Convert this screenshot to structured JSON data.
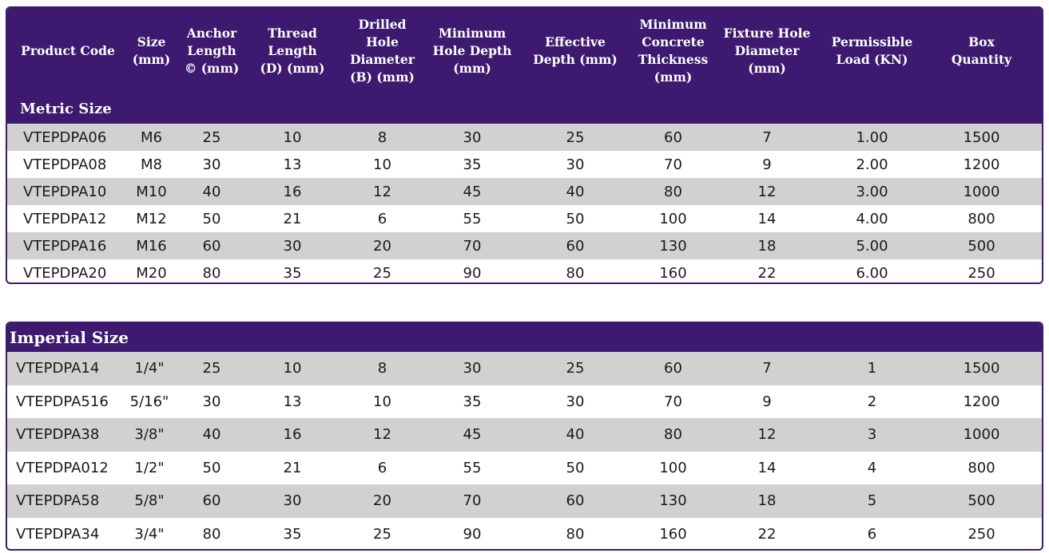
{
  "headers": [
    "Product Code",
    "Size\n(mm)",
    "Anchor\nLength\n© (mm)",
    "Thread\nLength\n(D) (mm)",
    "Drilled\nHole\nDiameter\n(B) (mm)",
    "Minimum\nHole Depth\n(mm)",
    "Effective\nDepth (mm)",
    "Minimum\nConcrete\nThickness\n(mm)",
    "Fixture Hole\nDiameter\n(mm)",
    "Permissible\nLoad (KN)",
    "Box\nQuantity"
  ],
  "metric": {
    "title": "Metric Size",
    "rows": [
      [
        "VTEPDPA06",
        "M6",
        "25",
        "10",
        "8",
        "30",
        "25",
        "60",
        "7",
        "1.00",
        "1500"
      ],
      [
        "VTEPDPA08",
        "M8",
        "30",
        "13",
        "10",
        "35",
        "30",
        "70",
        "9",
        "2.00",
        "1200"
      ],
      [
        "VTEPDPA10",
        "M10",
        "40",
        "16",
        "12",
        "45",
        "40",
        "80",
        "12",
        "3.00",
        "1000"
      ],
      [
        "VTEPDPA12",
        "M12",
        "50",
        "21",
        "6",
        "55",
        "50",
        "100",
        "14",
        "4.00",
        "800"
      ],
      [
        "VTEPDPA16",
        "M16",
        "60",
        "30",
        "20",
        "70",
        "60",
        "130",
        "18",
        "5.00",
        "500"
      ],
      [
        "VTEPDPA20",
        "M20",
        "80",
        "35",
        "25",
        "90",
        "80",
        "160",
        "22",
        "6.00",
        "250"
      ]
    ]
  },
  "imperial": {
    "title": "Imperial Size",
    "rows": [
      [
        "VTEPDPA14",
        "1/4\"",
        "25",
        "10",
        "8",
        "30",
        "25",
        "60",
        "7",
        "1",
        "1500"
      ],
      [
        "VTEPDPA516",
        "5/16\"",
        "30",
        "13",
        "10",
        "35",
        "30",
        "70",
        "9",
        "2",
        "1200"
      ],
      [
        "VTEPDPA38",
        "3/8\"",
        "40",
        "16",
        "12",
        "45",
        "40",
        "80",
        "12",
        "3",
        "1000"
      ],
      [
        "VTEPDPA012",
        "1/2\"",
        "50",
        "21",
        "6",
        "55",
        "50",
        "100",
        "14",
        "4",
        "800"
      ],
      [
        "VTEPDPA58",
        "5/8\"",
        "60",
        "30",
        "20",
        "70",
        "60",
        "130",
        "18",
        "5",
        "500"
      ],
      [
        "VTEPDPA34",
        "3/4\"",
        "80",
        "35",
        "25",
        "90",
        "80",
        "160",
        "22",
        "6",
        "250"
      ]
    ]
  },
  "colors": {
    "header_bg": "#3d1970",
    "alt_row": "#d1d1d1"
  }
}
